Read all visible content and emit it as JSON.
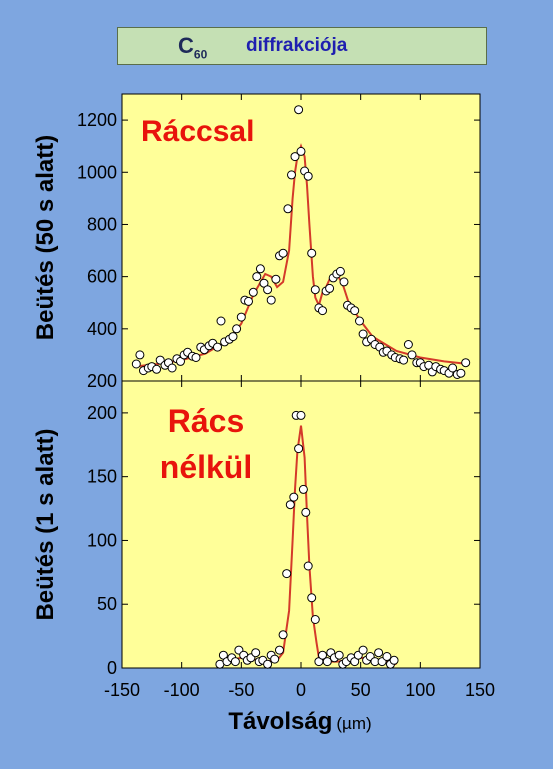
{
  "header": {
    "title_c": "C",
    "title_sub": "60",
    "title_word": "diffrakciója"
  },
  "colors": {
    "background": "#7EA6E0",
    "plot_bg": "#FFFF99",
    "title_bg": "#C5E0B4",
    "fit_line": "#D43A2A",
    "label_red": "#E8140C"
  },
  "chart_data": [
    {
      "type": "scatter",
      "title": "",
      "annotation": "Ráccsal",
      "xlabel": "Távolság",
      "xlabel_unit": "(µm)",
      "ylabel": "Beütés (50 s alatt)",
      "xlim": [
        -150,
        150
      ],
      "ylim": [
        200,
        1300
      ],
      "yticks": [
        200,
        400,
        600,
        800,
        1000,
        1200
      ],
      "series": [
        {
          "kind": "points",
          "x": [
            -138,
            -135,
            -132,
            -128,
            -125,
            -121,
            -118,
            -114,
            -111,
            -108,
            -104,
            -101,
            -98,
            -95,
            -91,
            -88,
            -84,
            -81,
            -77,
            -74,
            -70,
            -67,
            -64,
            -60,
            -57,
            -54,
            -50,
            -47,
            -44,
            -40,
            -37,
            -34,
            -31,
            -28,
            -25,
            -21,
            -18,
            -15,
            -11,
            -8,
            -5,
            -2,
            0,
            3,
            6,
            9,
            12,
            15,
            18,
            21,
            24,
            27,
            30,
            33,
            36,
            39,
            42,
            45,
            49,
            52,
            55,
            59,
            62,
            66,
            69,
            72,
            76,
            79,
            83,
            86,
            90,
            93,
            97,
            100,
            103,
            107,
            110,
            113,
            117,
            120,
            124,
            127,
            131,
            134,
            138
          ],
          "y": [
            265,
            300,
            240,
            250,
            255,
            245,
            280,
            260,
            270,
            250,
            285,
            275,
            300,
            310,
            295,
            290,
            330,
            320,
            335,
            345,
            330,
            430,
            350,
            360,
            370,
            400,
            445,
            510,
            505,
            540,
            600,
            630,
            575,
            550,
            510,
            590,
            680,
            690,
            860,
            990,
            1060,
            1240,
            1080,
            1005,
            985,
            690,
            550,
            480,
            470,
            545,
            555,
            595,
            610,
            620,
            580,
            490,
            480,
            470,
            430,
            380,
            350,
            360,
            340,
            330,
            310,
            315,
            300,
            290,
            285,
            280,
            340,
            300,
            270,
            270,
            255,
            260,
            235,
            255,
            245,
            240,
            230,
            250,
            225,
            230,
            270
          ]
        },
        {
          "kind": "fit",
          "x": [
            -140,
            -120,
            -100,
            -80,
            -60,
            -50,
            -40,
            -30,
            -25,
            -20,
            -15,
            -10,
            -7,
            -5,
            -3,
            0,
            3,
            5,
            7,
            10,
            12,
            15,
            18,
            20,
            25,
            30,
            35,
            40,
            50,
            60,
            80,
            100,
            120,
            140
          ],
          "y": [
            255,
            265,
            280,
            305,
            360,
            420,
            530,
            610,
            600,
            560,
            580,
            700,
            900,
            1000,
            1060,
            1100,
            1060,
            950,
            800,
            600,
            520,
            490,
            540,
            550,
            600,
            610,
            570,
            500,
            430,
            370,
            315,
            290,
            275,
            265
          ]
        }
      ]
    },
    {
      "type": "scatter",
      "title": "",
      "annotation": [
        "Rács",
        "nélkül"
      ],
      "xlabel": "Távolság",
      "xlabel_unit": "(µm)",
      "ylabel": "Beütés (1 s alatt)",
      "xlim": [
        -150,
        150
      ],
      "ylim": [
        0,
        225
      ],
      "yticks": [
        0,
        50,
        100,
        150,
        200
      ],
      "xticks": [
        -150,
        -100,
        -50,
        0,
        50,
        100,
        150
      ],
      "series": [
        {
          "kind": "points",
          "x": [
            -68,
            -65,
            -62,
            -58,
            -55,
            -52,
            -48,
            -45,
            -42,
            -38,
            -35,
            -32,
            -28,
            -25,
            -22,
            -18,
            -15,
            -12,
            -9,
            -6,
            -4,
            -2,
            0,
            2,
            4,
            6,
            9,
            12,
            15,
            18,
            22,
            25,
            28,
            32,
            35,
            38,
            42,
            45,
            48,
            52,
            55,
            58,
            62,
            65,
            68,
            72,
            75,
            78
          ],
          "y": [
            3,
            10,
            5,
            8,
            5,
            14,
            10,
            6,
            8,
            12,
            5,
            6,
            3,
            10,
            7,
            14,
            26,
            74,
            128,
            134,
            198,
            172,
            198,
            140,
            122,
            80,
            55,
            38,
            5,
            10,
            5,
            12,
            8,
            10,
            3,
            5,
            8,
            5,
            10,
            14,
            6,
            9,
            5,
            12,
            5,
            9,
            3,
            6
          ]
        },
        {
          "kind": "fit",
          "x": [
            -70,
            -60,
            -50,
            -40,
            -30,
            -20,
            -15,
            -10,
            -7,
            -5,
            -3,
            0,
            3,
            5,
            7,
            10,
            13,
            15,
            20,
            30,
            40,
            50,
            60,
            70,
            80
          ],
          "y": [
            2,
            6,
            8,
            7,
            5,
            6,
            12,
            45,
            100,
            140,
            170,
            190,
            165,
            120,
            80,
            40,
            20,
            8,
            5,
            5,
            6,
            8,
            7,
            5,
            3
          ]
        }
      ]
    }
  ]
}
